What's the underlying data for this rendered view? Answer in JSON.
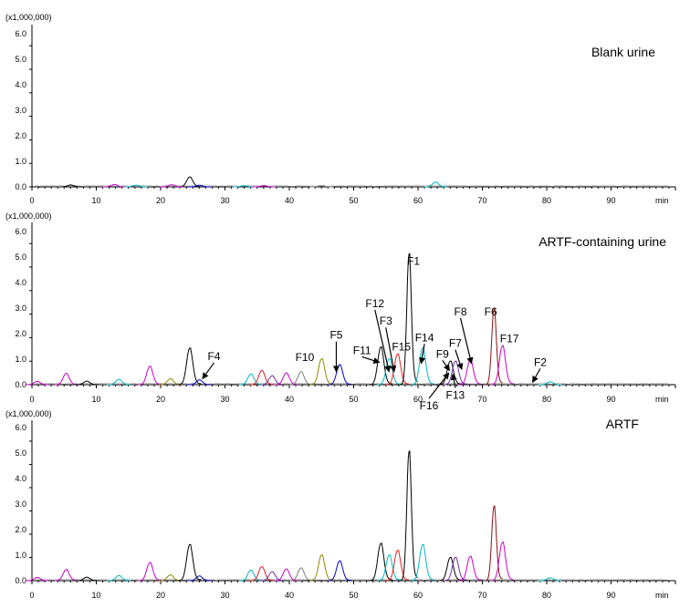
{
  "colors": {
    "axis": "#000000",
    "trace_black": "#000000",
    "trace_red": "#e02020",
    "trace_magenta": "#cc00cc",
    "trace_blue": "#0000cc",
    "trace_cyan": "#00b7c3",
    "trace_brown": "#8b1010",
    "trace_olive": "#8a8a00",
    "trace_purple": "#7030a0",
    "trace_gray": "#808080"
  },
  "chart_data": [
    {
      "type": "line",
      "title": "Blank urine",
      "scale_label": "(x1,000,000)",
      "xlabel": "min",
      "ylabel": "",
      "xlim": [
        0,
        100
      ],
      "ylim": [
        0,
        6.9
      ],
      "x_ticks": [
        "0",
        "10",
        "20",
        "30",
        "40",
        "50",
        "60",
        "70",
        "80",
        "90"
      ],
      "y_ticks": [
        "0.0",
        "1.0",
        "2.0",
        "3.0",
        "4.0",
        "5.0",
        "6.0"
      ],
      "peaks": [
        {
          "x": 24.5,
          "y": 0.42,
          "color": "black"
        },
        {
          "x": 62.7,
          "y": 0.2,
          "color": "cyan"
        },
        {
          "x": 6.0,
          "y": 0.08,
          "color": "black"
        },
        {
          "x": 12.8,
          "y": 0.1,
          "color": "magenta"
        },
        {
          "x": 16.2,
          "y": 0.07,
          "color": "cyan"
        },
        {
          "x": 21.7,
          "y": 0.09,
          "color": "magenta"
        },
        {
          "x": 26.0,
          "y": 0.07,
          "color": "blue"
        },
        {
          "x": 33.0,
          "y": 0.05,
          "color": "cyan"
        },
        {
          "x": 36.0,
          "y": 0.05,
          "color": "magenta"
        },
        {
          "x": 45.0,
          "y": 0.05,
          "color": "gray"
        }
      ],
      "annotations": []
    },
    {
      "type": "line",
      "title": "ARTF-containing urine",
      "scale_label": "(x1,000,000)",
      "xlabel": "min",
      "ylabel": "",
      "xlim": [
        0,
        100
      ],
      "ylim": [
        0,
        6.9
      ],
      "x_ticks": [
        "0",
        "10",
        "20",
        "30",
        "40",
        "50",
        "60",
        "70",
        "80",
        "90"
      ],
      "y_ticks": [
        "0.0",
        "1.0",
        "2.0",
        "3.0",
        "4.0",
        "5.0",
        "6.0"
      ],
      "peaks": [
        {
          "x": 0.8,
          "y": 0.14,
          "color": "magenta"
        },
        {
          "x": 5.3,
          "y": 0.48,
          "color": "magenta"
        },
        {
          "x": 8.5,
          "y": 0.15,
          "color": "black"
        },
        {
          "x": 13.5,
          "y": 0.22,
          "color": "cyan"
        },
        {
          "x": 18.3,
          "y": 0.78,
          "color": "magenta"
        },
        {
          "x": 21.5,
          "y": 0.25,
          "color": "olive"
        },
        {
          "x": 24.5,
          "y": 1.55,
          "color": "black"
        },
        {
          "x": 26.0,
          "y": 0.2,
          "color": "blue"
        },
        {
          "x": 34.0,
          "y": 0.45,
          "color": "cyan"
        },
        {
          "x": 35.7,
          "y": 0.6,
          "color": "red"
        },
        {
          "x": 37.3,
          "y": 0.38,
          "color": "purple"
        },
        {
          "x": 39.5,
          "y": 0.5,
          "color": "magenta"
        },
        {
          "x": 41.8,
          "y": 0.55,
          "color": "gray"
        },
        {
          "x": 45.0,
          "y": 1.1,
          "color": "olive"
        },
        {
          "x": 47.8,
          "y": 0.85,
          "color": "blue"
        },
        {
          "x": 54.2,
          "y": 1.6,
          "color": "black"
        },
        {
          "x": 55.5,
          "y": 1.1,
          "color": "cyan"
        },
        {
          "x": 56.8,
          "y": 1.3,
          "color": "red"
        },
        {
          "x": 58.6,
          "y": 5.55,
          "color": "black"
        },
        {
          "x": 60.7,
          "y": 1.55,
          "color": "cyan"
        },
        {
          "x": 65.0,
          "y": 1.0,
          "color": "black"
        },
        {
          "x": 65.8,
          "y": 1.0,
          "color": "purple"
        },
        {
          "x": 68.1,
          "y": 1.05,
          "color": "magenta"
        },
        {
          "x": 71.8,
          "y": 3.2,
          "color": "brown"
        },
        {
          "x": 73.1,
          "y": 1.65,
          "color": "magenta"
        },
        {
          "x": 80.5,
          "y": 0.12,
          "color": "cyan"
        }
      ],
      "annotations": [
        {
          "label": "F1",
          "x": 59.3,
          "y": 5.1,
          "arrow": false
        },
        {
          "label": "F2",
          "x": 79.0,
          "y": 0.8,
          "arrow": true,
          "ax": 77.8,
          "ay": 0.1
        },
        {
          "label": "F3",
          "x": 55.0,
          "y": 2.55,
          "arrow": true,
          "ax": 56.3,
          "ay": 0.55
        },
        {
          "label": "F4",
          "x": 28.3,
          "y": 1.05,
          "arrow": true,
          "ax": 26.5,
          "ay": 0.25
        },
        {
          "label": "F5",
          "x": 47.3,
          "y": 1.95,
          "arrow": true,
          "ax": 47.3,
          "ay": 0.55
        },
        {
          "label": "F6",
          "x": 71.3,
          "y": 2.95,
          "arrow": false
        },
        {
          "label": "F7",
          "x": 65.8,
          "y": 1.6,
          "arrow": true,
          "ax": 66.8,
          "ay": 0.65
        },
        {
          "label": "F8",
          "x": 66.6,
          "y": 2.95,
          "arrow": true,
          "ax": 68.3,
          "ay": 0.9
        },
        {
          "label": "F9",
          "x": 63.8,
          "y": 1.15,
          "arrow": true,
          "ax": 64.9,
          "ay": 0.6
        },
        {
          "label": "F10",
          "x": 42.4,
          "y": 1.0,
          "arrow": false
        },
        {
          "label": "F11",
          "x": 51.3,
          "y": 1.3,
          "arrow": true,
          "ax": 54.0,
          "ay": 0.95
        },
        {
          "label": "F12",
          "x": 53.3,
          "y": 3.3,
          "arrow": true,
          "ax": 55.5,
          "ay": 0.55
        },
        {
          "label": "F13",
          "x": 65.8,
          "y": -0.6,
          "arrow": true,
          "ax": 65.4,
          "ay": 0.45
        },
        {
          "label": "F14",
          "x": 61.0,
          "y": 1.85,
          "arrow": true,
          "ax": 60.5,
          "ay": 0.9
        },
        {
          "label": "F15",
          "x": 57.4,
          "y": 1.45,
          "arrow": false
        },
        {
          "label": "F16",
          "x": 61.7,
          "y": -1.05,
          "arrow": true,
          "ax": 64.8,
          "ay": 0.5
        },
        {
          "label": "F17",
          "x": 74.2,
          "y": 1.8,
          "arrow": false
        }
      ]
    },
    {
      "type": "line",
      "title": "ARTF",
      "scale_label": "(x1,000,000)",
      "xlabel": "min",
      "ylabel": "",
      "xlim": [
        0,
        100
      ],
      "ylim": [
        0,
        6.9
      ],
      "x_ticks": [
        "0",
        "10",
        "20",
        "30",
        "40",
        "50",
        "60",
        "70",
        "80",
        "90"
      ],
      "y_ticks": [
        "0.0",
        "1.0",
        "2.0",
        "3.0",
        "4.0",
        "5.0",
        "6.0"
      ],
      "peaks": [
        {
          "x": 0.8,
          "y": 0.14,
          "color": "magenta"
        },
        {
          "x": 5.3,
          "y": 0.48,
          "color": "magenta"
        },
        {
          "x": 8.5,
          "y": 0.15,
          "color": "black"
        },
        {
          "x": 13.5,
          "y": 0.22,
          "color": "cyan"
        },
        {
          "x": 18.3,
          "y": 0.78,
          "color": "magenta"
        },
        {
          "x": 21.5,
          "y": 0.25,
          "color": "olive"
        },
        {
          "x": 24.5,
          "y": 1.55,
          "color": "black"
        },
        {
          "x": 26.0,
          "y": 0.2,
          "color": "blue"
        },
        {
          "x": 34.0,
          "y": 0.45,
          "color": "cyan"
        },
        {
          "x": 35.7,
          "y": 0.6,
          "color": "red"
        },
        {
          "x": 37.3,
          "y": 0.38,
          "color": "purple"
        },
        {
          "x": 39.5,
          "y": 0.5,
          "color": "magenta"
        },
        {
          "x": 41.8,
          "y": 0.55,
          "color": "gray"
        },
        {
          "x": 45.0,
          "y": 1.1,
          "color": "olive"
        },
        {
          "x": 47.8,
          "y": 0.85,
          "color": "blue"
        },
        {
          "x": 54.2,
          "y": 1.6,
          "color": "black"
        },
        {
          "x": 55.5,
          "y": 1.1,
          "color": "cyan"
        },
        {
          "x": 56.8,
          "y": 1.3,
          "color": "red"
        },
        {
          "x": 58.6,
          "y": 5.55,
          "color": "black"
        },
        {
          "x": 60.7,
          "y": 1.55,
          "color": "cyan"
        },
        {
          "x": 65.0,
          "y": 1.0,
          "color": "black"
        },
        {
          "x": 65.8,
          "y": 1.0,
          "color": "purple"
        },
        {
          "x": 68.1,
          "y": 1.05,
          "color": "magenta"
        },
        {
          "x": 71.8,
          "y": 3.2,
          "color": "brown"
        },
        {
          "x": 73.1,
          "y": 1.65,
          "color": "magenta"
        },
        {
          "x": 80.5,
          "y": 0.12,
          "color": "cyan"
        }
      ],
      "annotations": []
    }
  ]
}
